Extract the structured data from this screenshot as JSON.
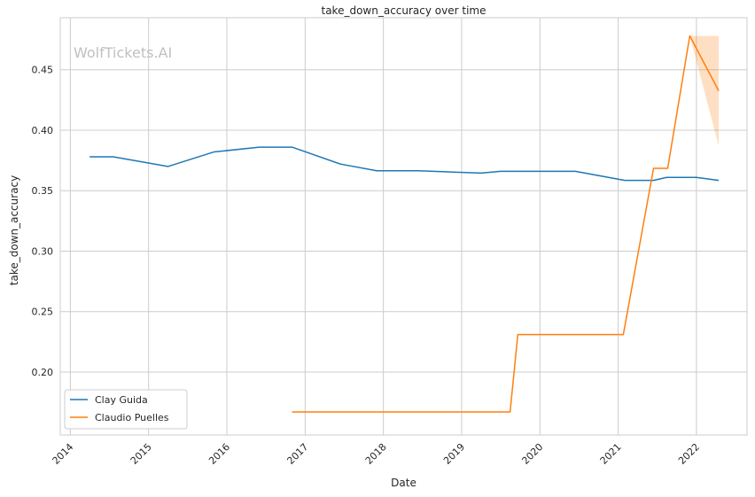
{
  "chart_data": {
    "type": "line",
    "title": "take_down_accuracy over time",
    "xlabel": "Date",
    "ylabel": "take_down_accuracy",
    "watermark": "WolfTickets.AI",
    "xlim": [
      "2013-11-15",
      "2022-08-25"
    ],
    "ylim": [
      0.148,
      0.493
    ],
    "x_ticks": [
      "2014",
      "2015",
      "2016",
      "2017",
      "2018",
      "2019",
      "2020",
      "2021",
      "2022"
    ],
    "y_ticks": [
      "0.20",
      "0.25",
      "0.30",
      "0.35",
      "0.40",
      "0.45"
    ],
    "grid": true,
    "legend_position": "lower-left",
    "series": [
      {
        "name": "Clay Guida",
        "color": "#1f77b4",
        "points": [
          {
            "x": "2014-04-01",
            "y": 0.378
          },
          {
            "x": "2014-07-20",
            "y": 0.378
          },
          {
            "x": "2015-04-01",
            "y": 0.37
          },
          {
            "x": "2015-11-01",
            "y": 0.382
          },
          {
            "x": "2016-06-01",
            "y": 0.386
          },
          {
            "x": "2016-11-01",
            "y": 0.386
          },
          {
            "x": "2017-06-15",
            "y": 0.372
          },
          {
            "x": "2017-12-01",
            "y": 0.3665
          },
          {
            "x": "2018-06-15",
            "y": 0.3665
          },
          {
            "x": "2019-04-01",
            "y": 0.3645
          },
          {
            "x": "2019-07-01",
            "y": 0.366
          },
          {
            "x": "2020-06-15",
            "y": 0.366
          },
          {
            "x": "2021-02-01",
            "y": 0.3585
          },
          {
            "x": "2021-06-15",
            "y": 0.3585
          },
          {
            "x": "2021-08-15",
            "y": 0.361
          },
          {
            "x": "2022-01-01",
            "y": 0.361
          },
          {
            "x": "2022-04-15",
            "y": 0.3585
          }
        ]
      },
      {
        "name": "Claudio Puelles",
        "color": "#ff7f0e",
        "points": [
          {
            "x": "2016-11-01",
            "y": 0.167
          },
          {
            "x": "2019-08-15",
            "y": 0.167
          },
          {
            "x": "2019-09-20",
            "y": 0.231
          },
          {
            "x": "2021-01-25",
            "y": 0.231
          },
          {
            "x": "2021-06-15",
            "y": 0.3685
          },
          {
            "x": "2021-08-20",
            "y": 0.3685
          },
          {
            "x": "2021-12-01",
            "y": 0.478
          },
          {
            "x": "2022-04-15",
            "y": 0.4325
          }
        ],
        "confidence_band": {
          "color": "#ff7f0e",
          "points": [
            {
              "x": "2021-12-01",
              "low": 0.478,
              "high": 0.478
            },
            {
              "x": "2022-04-15",
              "low": 0.387,
              "high": 0.478
            }
          ]
        }
      }
    ]
  }
}
